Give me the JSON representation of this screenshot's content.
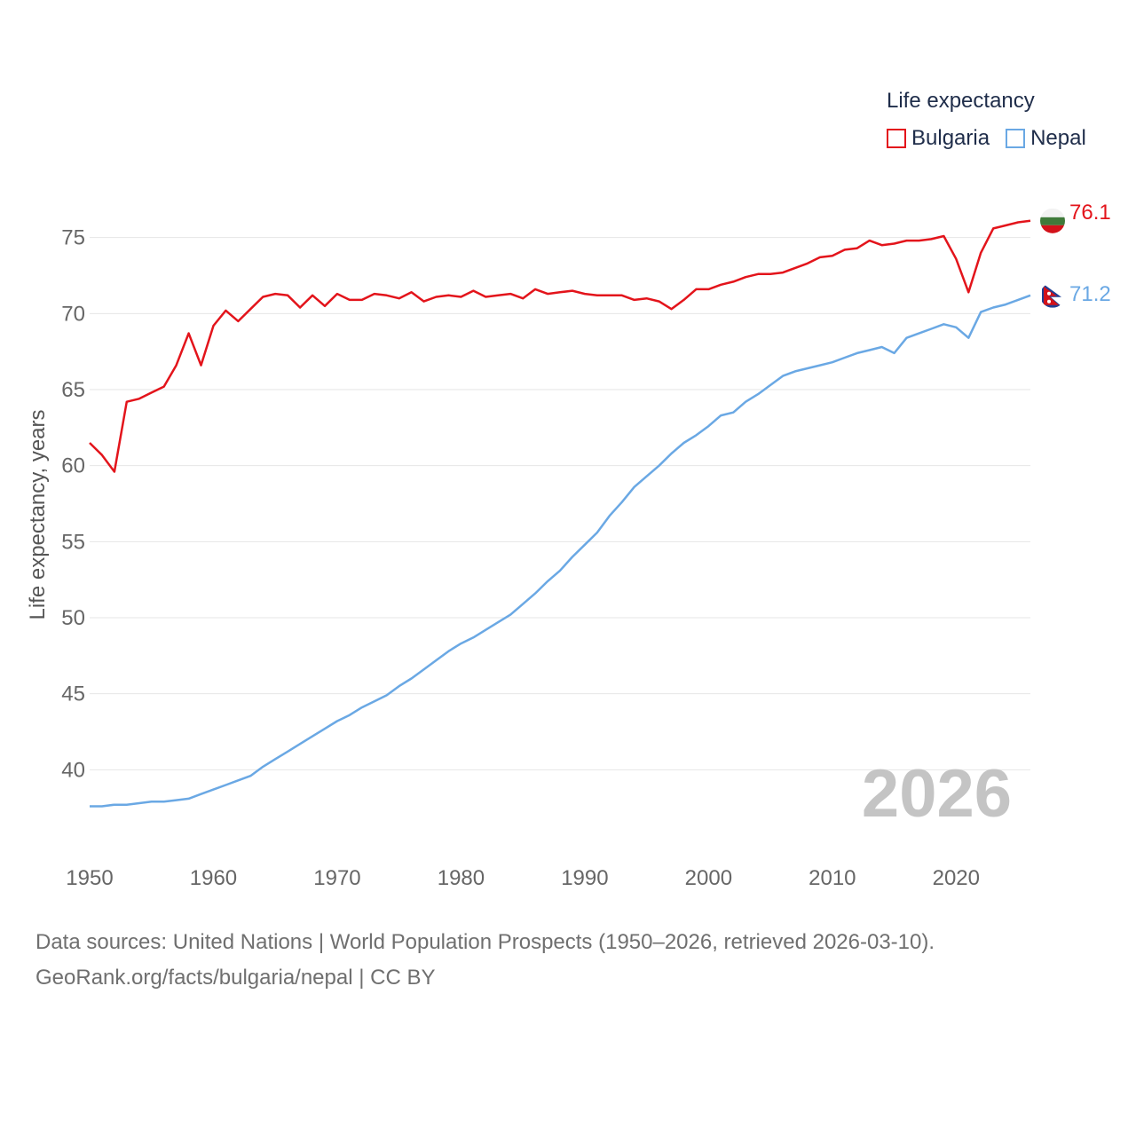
{
  "chart_data": {
    "type": "line",
    "title": "Life expectancy",
    "ylabel": "Life expectancy, years",
    "xlabel": "",
    "xlim": [
      1950,
      2026
    ],
    "ylim": [
      35,
      80
    ],
    "xticks": [
      1950,
      1960,
      1970,
      1980,
      1990,
      2000,
      2010,
      2020
    ],
    "yticks": [
      40,
      45,
      50,
      55,
      60,
      65,
      70,
      75
    ],
    "year_label": "2026",
    "colors": {
      "Bulgaria": "#e3141b",
      "Nepal": "#6aa8e4"
    },
    "series": [
      {
        "name": "Bulgaria",
        "end_label": "76.1",
        "x_start": 1950,
        "values": [
          61.5,
          60.7,
          59.6,
          64.2,
          64.4,
          64.8,
          65.2,
          66.6,
          68.7,
          66.6,
          69.2,
          70.2,
          69.5,
          70.3,
          71.1,
          71.3,
          71.2,
          70.4,
          71.2,
          70.5,
          71.3,
          70.9,
          70.9,
          71.3,
          71.2,
          71.0,
          71.4,
          70.8,
          71.1,
          71.2,
          71.1,
          71.5,
          71.1,
          71.2,
          71.3,
          71.0,
          71.6,
          71.3,
          71.4,
          71.5,
          71.3,
          71.2,
          71.2,
          71.2,
          70.9,
          71.0,
          70.8,
          70.3,
          70.9,
          71.6,
          71.6,
          71.9,
          72.1,
          72.4,
          72.6,
          72.6,
          72.7,
          73.0,
          73.3,
          73.7,
          73.8,
          74.2,
          74.3,
          74.8,
          74.5,
          74.6,
          74.8,
          74.8,
          74.9,
          75.1,
          73.6,
          71.4,
          74.0,
          75.6,
          75.8,
          76.0,
          76.1
        ]
      },
      {
        "name": "Nepal",
        "end_label": "71.2",
        "x_start": 1950,
        "values": [
          37.6,
          37.6,
          37.7,
          37.7,
          37.8,
          37.9,
          37.9,
          38.0,
          38.1,
          38.4,
          38.7,
          39.0,
          39.3,
          39.6,
          40.2,
          40.7,
          41.2,
          41.7,
          42.2,
          42.7,
          43.2,
          43.6,
          44.1,
          44.5,
          44.9,
          45.5,
          46.0,
          46.6,
          47.2,
          47.8,
          48.3,
          48.7,
          49.2,
          49.7,
          50.2,
          50.9,
          51.6,
          52.4,
          53.1,
          54.0,
          54.8,
          55.6,
          56.7,
          57.6,
          58.6,
          59.3,
          60.0,
          60.8,
          61.5,
          62.0,
          62.6,
          63.3,
          63.5,
          64.2,
          64.7,
          65.3,
          65.9,
          66.2,
          66.4,
          66.6,
          66.8,
          67.1,
          67.4,
          67.6,
          67.8,
          67.4,
          68.4,
          68.7,
          69.0,
          69.3,
          69.1,
          68.4,
          70.1,
          70.4,
          70.6,
          70.9,
          71.2
        ]
      }
    ]
  },
  "footer": {
    "line1": "Data sources: United Nations | World Population Prospects (1950–2026, retrieved 2026-03-10).",
    "line2": "GeoRank.org/facts/bulgaria/nepal | CC BY"
  }
}
